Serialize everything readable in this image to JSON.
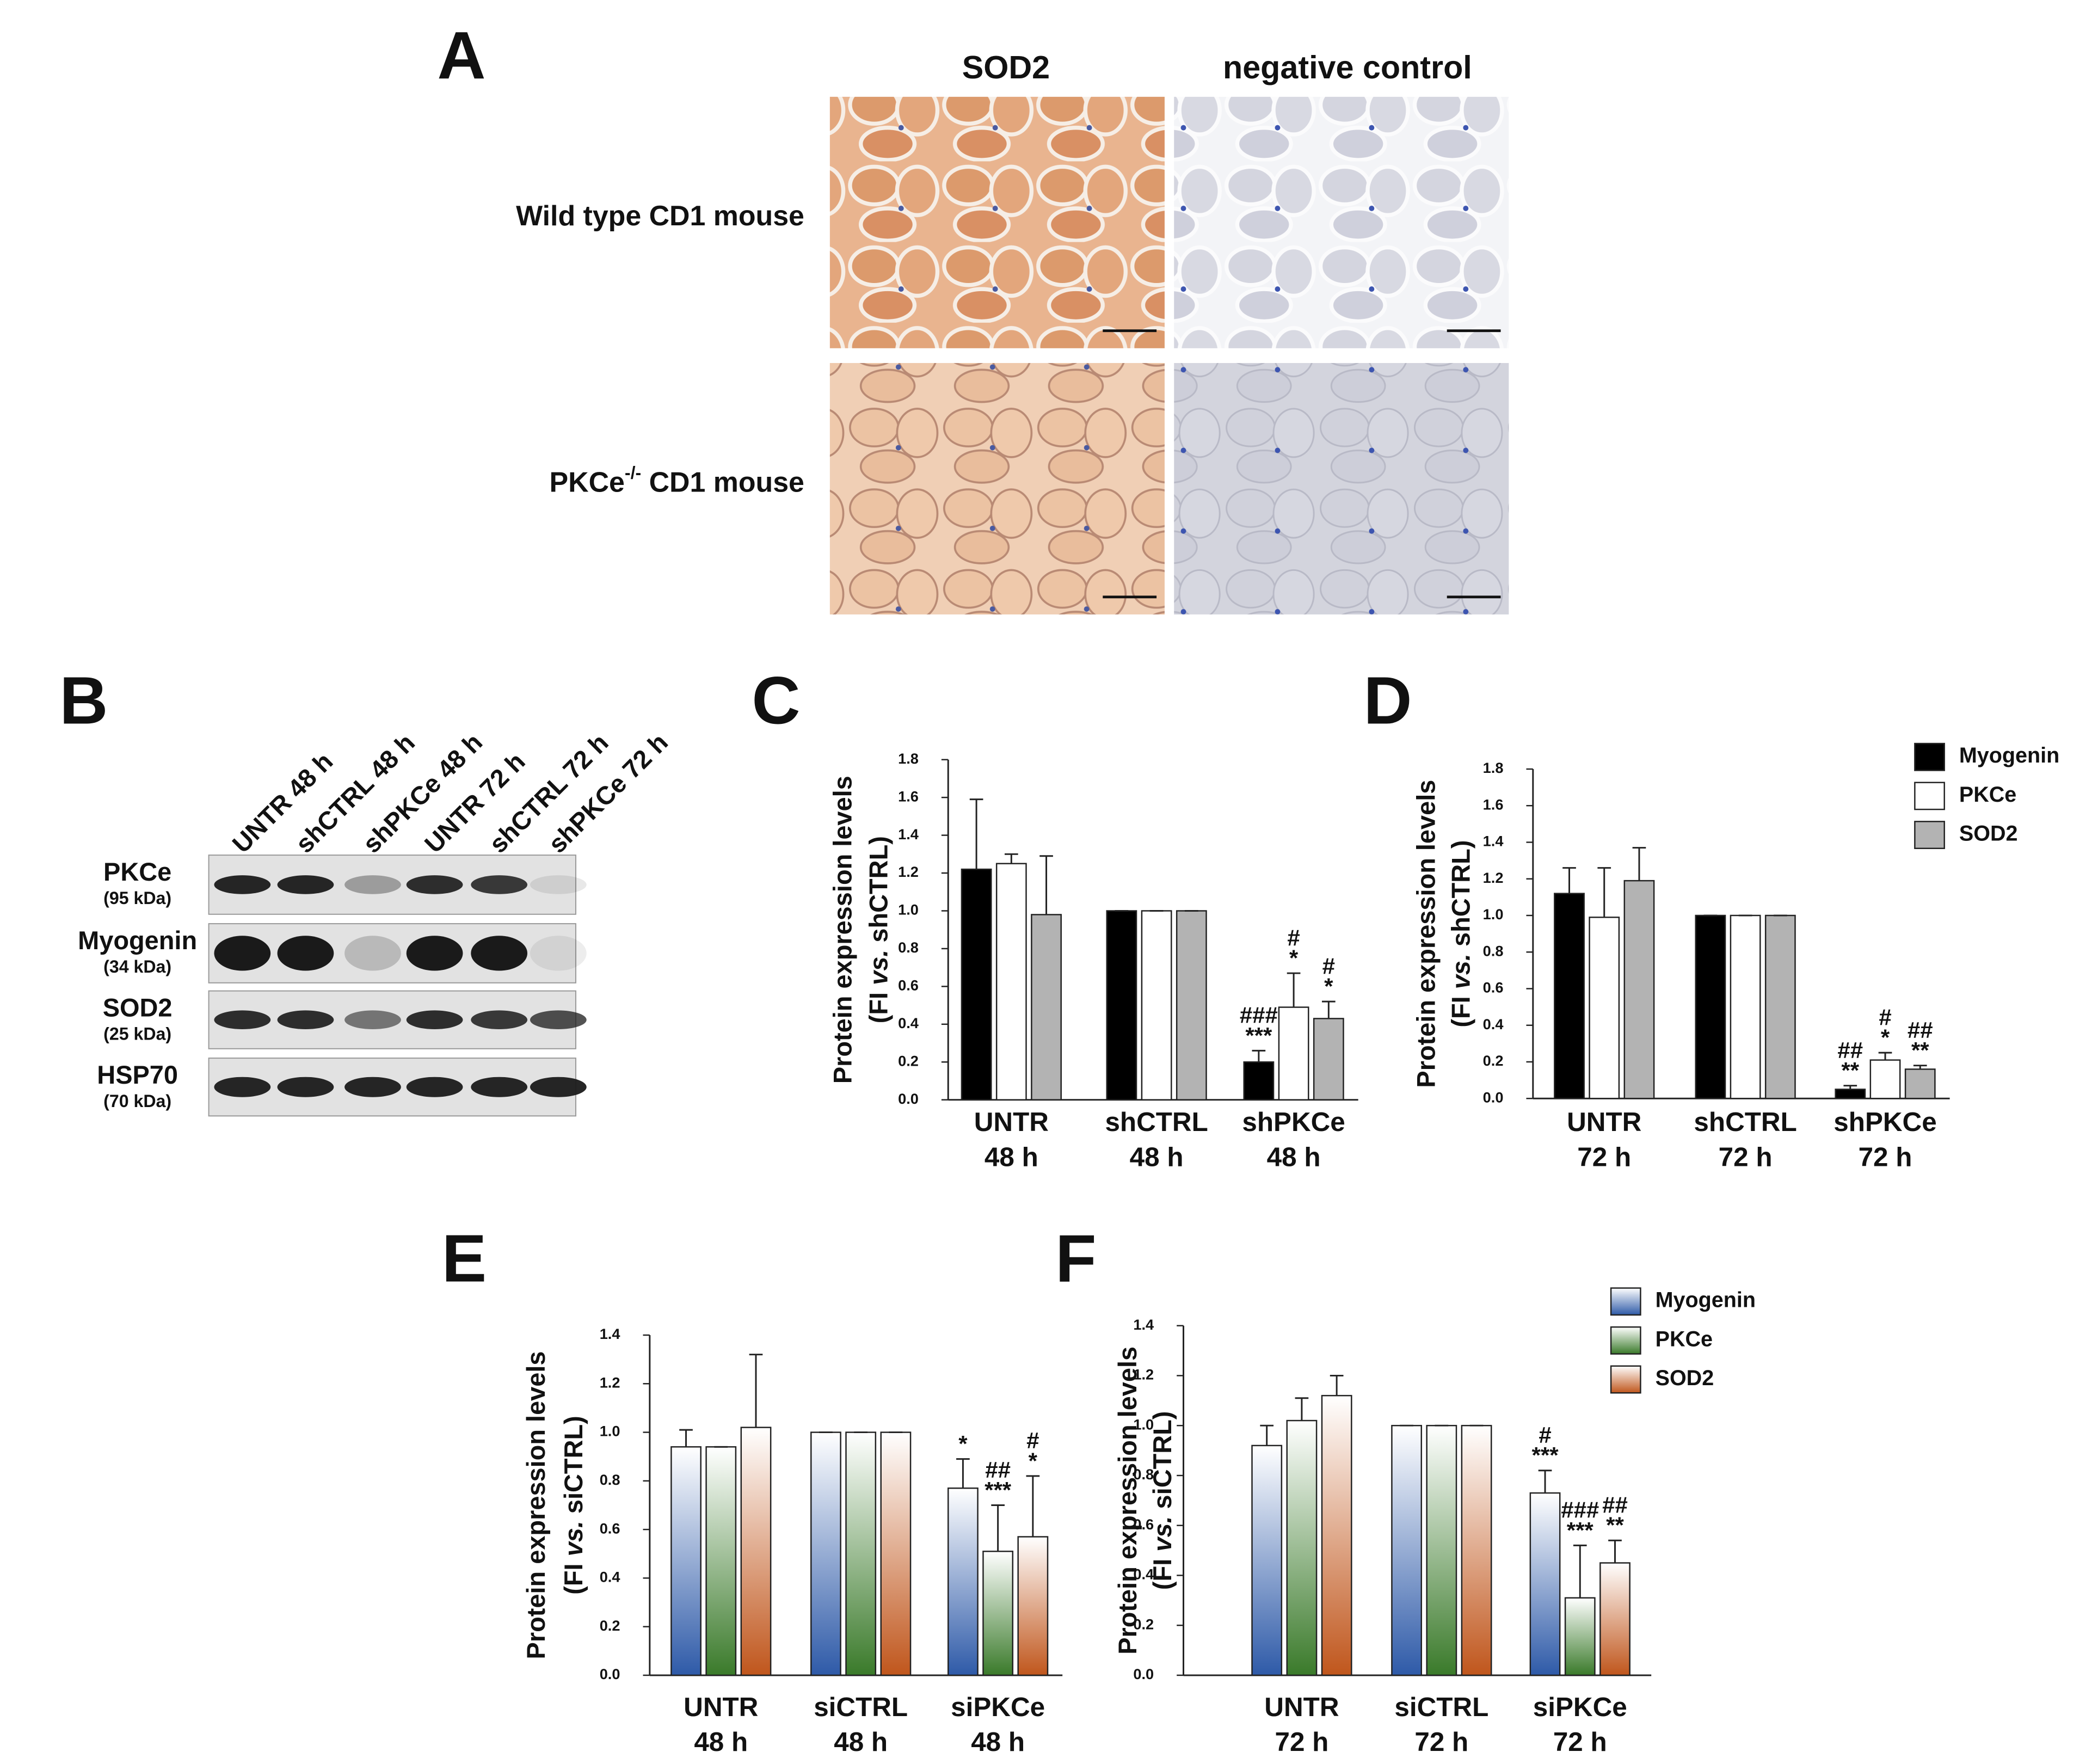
{
  "panel_a": {
    "label": "A",
    "columns": [
      "SOD2",
      "negative control"
    ],
    "rows": [
      [
        "Wild type CD1 mouse"
      ],
      [
        "PKCe",
        "-/-",
        " CD1 mouse"
      ]
    ]
  },
  "panel_b": {
    "label": "B",
    "lanes": [
      "UNTR 48 h",
      "shCTRL 48 h",
      "shPKCe 48 h",
      "UNTR 72 h",
      "shCTRL 72 h",
      "shPKCe 72 h"
    ],
    "proteins": [
      {
        "name": "PKCe",
        "size": "(95 kDa)"
      },
      {
        "name": "Myogenin",
        "size": "(34 kDa)"
      },
      {
        "name": "SOD2",
        "size": "(25 kDa)"
      },
      {
        "name": "HSP70",
        "size": "(70 kDa)"
      }
    ]
  },
  "chart_data": [
    {
      "type": "bar",
      "panel": "C",
      "ylabel": [
        "Protein expression levels",
        "(FI ",
        "vs.",
        " shCTRL)"
      ],
      "categories": [
        [
          "UNTR",
          "48 h"
        ],
        [
          "shCTRL",
          "48 h"
        ],
        [
          "shPKCe",
          "48 h"
        ]
      ],
      "series": [
        {
          "color": "#000000",
          "values": [
            1.22,
            1.0,
            0.2
          ],
          "errors": [
            0.37,
            0,
            0.06
          ],
          "annotations": [
            null,
            null,
            [
              "###",
              "***"
            ]
          ]
        },
        {
          "color": "#ffffff",
          "values": [
            1.25,
            1.0,
            0.49
          ],
          "errors": [
            0.05,
            0,
            0.18
          ],
          "annotations": [
            null,
            null,
            [
              "#",
              "*"
            ]
          ]
        },
        {
          "color": "#b3b3b3",
          "values": [
            0.98,
            1.0,
            0.43
          ],
          "errors": [
            0.31,
            0,
            0.09
          ],
          "annotations": [
            null,
            null,
            [
              "#",
              "*"
            ]
          ]
        }
      ],
      "ylim": [
        0,
        1.8
      ],
      "yticks": [
        {
          "value": 0,
          "label": "0.0"
        },
        0.2,
        0.4,
        0.6,
        0.8,
        {
          "value": 1,
          "label": "1.0"
        },
        1.2,
        1.4,
        1.6,
        1.8
      ],
      "legend": false,
      "gradient": false
    },
    {
      "type": "bar",
      "panel": "D",
      "ylabel": [
        "Protein expression levels",
        "(FI ",
        "vs.",
        " shCTRL)"
      ],
      "categories": [
        [
          "UNTR",
          "72 h"
        ],
        [
          "shCTRL",
          "72 h"
        ],
        [
          "shPKCe",
          "72 h"
        ]
      ],
      "series": [
        {
          "name": "Myogenin",
          "color": "#000000",
          "values": [
            1.12,
            1.0,
            0.05
          ],
          "errors": [
            0.14,
            0,
            0.02
          ],
          "annotations": [
            null,
            null,
            [
              "##",
              "**"
            ]
          ]
        },
        {
          "name": "PKCe",
          "color": "#ffffff",
          "values": [
            0.99,
            1.0,
            0.21
          ],
          "errors": [
            0.27,
            0,
            0.04
          ],
          "annotations": [
            null,
            null,
            [
              "#",
              "*"
            ]
          ]
        },
        {
          "name": "SOD2",
          "color": "#b3b3b3",
          "values": [
            1.19,
            1.0,
            0.16
          ],
          "errors": [
            0.18,
            0,
            0.02
          ],
          "annotations": [
            null,
            null,
            [
              "##",
              "**"
            ]
          ]
        }
      ],
      "ylim": [
        0,
        1.8
      ],
      "yticks": [
        {
          "value": 0,
          "label": "0.0"
        },
        0.2,
        0.4,
        0.6,
        0.8,
        {
          "value": 1,
          "label": "1.0"
        },
        1.2,
        1.4,
        1.6,
        1.8
      ],
      "legend": true,
      "gradient": false
    },
    {
      "type": "bar",
      "panel": "E",
      "ylabel": [
        "Protein expression levels",
        "(FI ",
        "vs.",
        " siCTRL)"
      ],
      "categories": [
        [
          "UNTR",
          "48 h"
        ],
        [
          "siCTRL",
          "48 h"
        ],
        [
          "siPKCe",
          "48 h"
        ]
      ],
      "series": [
        {
          "color": "#2e5aa8",
          "values": [
            0.94,
            1.0,
            0.77
          ],
          "errors": [
            0.07,
            0,
            0.12
          ],
          "annotations": [
            null,
            null,
            [
              "*"
            ]
          ]
        },
        {
          "color": "#3a7a2a",
          "values": [
            0.94,
            1.0,
            0.51
          ],
          "errors": [
            0,
            0,
            0.19
          ],
          "annotations": [
            null,
            null,
            [
              "##",
              "***"
            ]
          ]
        },
        {
          "color": "#c0561c",
          "values": [
            1.02,
            1.0,
            0.57
          ],
          "errors": [
            0.3,
            0,
            0.25
          ],
          "annotations": [
            null,
            null,
            [
              "#",
              "*"
            ]
          ]
        }
      ],
      "ylim": [
        0,
        1.4
      ],
      "yticks": [
        {
          "value": 0,
          "label": "0.0"
        },
        0.2,
        0.4,
        0.6,
        0.8,
        {
          "value": 1,
          "label": "1.0"
        },
        1.2,
        1.4
      ],
      "legend": false,
      "gradient": true
    },
    {
      "type": "bar",
      "panel": "F",
      "ylabel": [
        "Protein expression levels",
        "(FI ",
        "vs.",
        " siCTRL)"
      ],
      "categories": [
        [
          "UNTR",
          "72 h"
        ],
        [
          "siCTRL",
          "72 h"
        ],
        [
          "siPKCe",
          "72 h"
        ]
      ],
      "series": [
        {
          "name": "Myogenin",
          "color": "#2e5aa8",
          "values": [
            0.92,
            1.0,
            0.73
          ],
          "errors": [
            0.08,
            0,
            0.09
          ],
          "annotations": [
            null,
            null,
            [
              "#",
              "***"
            ]
          ]
        },
        {
          "name": "PKCe",
          "color": "#3a7a2a",
          "values": [
            1.02,
            1.0,
            0.31
          ],
          "errors": [
            0.09,
            0,
            0.21
          ],
          "annotations": [
            null,
            null,
            [
              "###",
              "***"
            ]
          ]
        },
        {
          "name": "SOD2",
          "color": "#c0561c",
          "values": [
            1.12,
            1.0,
            0.45
          ],
          "errors": [
            0.08,
            0,
            0.09
          ],
          "annotations": [
            null,
            null,
            [
              "##",
              "**"
            ]
          ]
        }
      ],
      "ylim": [
        0,
        1.4
      ],
      "yticks": [
        {
          "value": 0,
          "label": "0.0"
        },
        0.2,
        0.4,
        0.6,
        0.8,
        {
          "value": 1,
          "label": "1.0"
        },
        1.2,
        1.4
      ],
      "legend": true,
      "gradient": true
    }
  ]
}
